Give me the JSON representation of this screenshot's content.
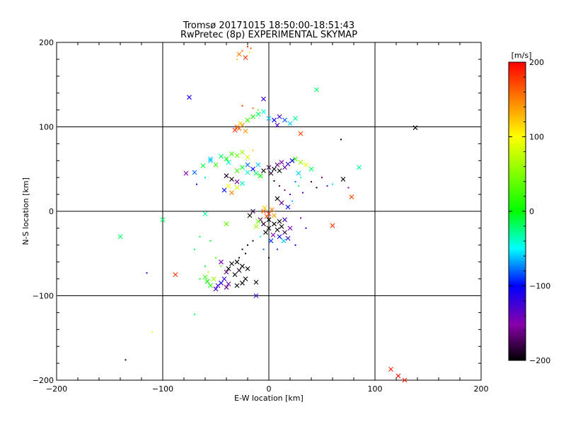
{
  "chart_data": {
    "type": "scatter",
    "title": "Tromsø 20171015 18:50:00-18:51:43",
    "subtitle": "RwPretec (8p) EXPERIMENTAL SKYMAP",
    "xlabel": "E-W location [km]",
    "ylabel": "N-S location [km]",
    "xlim": [
      -200,
      200
    ],
    "ylim": [
      -200,
      200
    ],
    "xticks": [
      "−200",
      "−100",
      "0",
      "100",
      "200"
    ],
    "yticks": [
      "−200",
      "−100",
      "0",
      "100",
      "200"
    ],
    "grid": true,
    "grid_lines": [
      -100,
      0,
      100
    ],
    "colorbar": {
      "label": "[m/s]",
      "range": [
        -200,
        200
      ],
      "ticks": [
        "200",
        "100",
        "0",
        "−100",
        "−200"
      ],
      "position": "right"
    },
    "points": [
      [
        -20,
        195,
        180,
        "d"
      ],
      [
        -17,
        193,
        170,
        "d"
      ],
      [
        -25,
        190,
        160,
        "d"
      ],
      [
        -28,
        186,
        150,
        "x"
      ],
      [
        -22,
        182,
        180,
        "x"
      ],
      [
        -30,
        180,
        120,
        "d"
      ],
      [
        -18,
        188,
        100,
        "d"
      ],
      [
        -75,
        135,
        -110,
        "x"
      ],
      [
        -5,
        133,
        -120,
        "x"
      ],
      [
        45,
        144,
        -20,
        "x"
      ],
      [
        -25,
        125,
        180,
        "d"
      ],
      [
        -15,
        122,
        160,
        "d"
      ],
      [
        -10,
        120,
        40,
        "d"
      ],
      [
        -30,
        100,
        170,
        "x"
      ],
      [
        -28,
        98,
        160,
        "x"
      ],
      [
        -25,
        102,
        150,
        "x"
      ],
      [
        -22,
        95,
        140,
        "x"
      ],
      [
        -27,
        104,
        120,
        "x"
      ],
      [
        -32,
        96,
        180,
        "x"
      ],
      [
        -20,
        108,
        20,
        "x"
      ],
      [
        -15,
        112,
        0,
        "x"
      ],
      [
        -10,
        115,
        -20,
        "x"
      ],
      [
        -5,
        118,
        -40,
        "x"
      ],
      [
        0,
        110,
        -60,
        "x"
      ],
      [
        5,
        108,
        -100,
        "x"
      ],
      [
        10,
        112,
        -120,
        "x"
      ],
      [
        15,
        108,
        -80,
        "x"
      ],
      [
        20,
        104,
        -60,
        "x"
      ],
      [
        25,
        110,
        -30,
        "x"
      ],
      [
        30,
        92,
        170,
        "x"
      ],
      [
        8,
        102,
        -130,
        "x"
      ],
      [
        -45,
        65,
        -20,
        "x"
      ],
      [
        -40,
        62,
        0,
        "x"
      ],
      [
        -35,
        68,
        20,
        "x"
      ],
      [
        -30,
        66,
        40,
        "x"
      ],
      [
        -25,
        70,
        60,
        "x"
      ],
      [
        -20,
        64,
        80,
        "x"
      ],
      [
        -38,
        58,
        -40,
        "x"
      ],
      [
        -50,
        55,
        20,
        "x"
      ],
      [
        -55,
        60,
        -60,
        "x"
      ],
      [
        -62,
        54,
        -10,
        "x"
      ],
      [
        -15,
        72,
        120,
        "d"
      ],
      [
        -20,
        55,
        -80,
        "x"
      ],
      [
        -15,
        50,
        -100,
        "x"
      ],
      [
        -10,
        55,
        -60,
        "x"
      ],
      [
        -5,
        48,
        -200,
        "x"
      ],
      [
        0,
        52,
        -180,
        "x"
      ],
      [
        5,
        50,
        -200,
        "x"
      ],
      [
        10,
        48,
        -200,
        "x"
      ],
      [
        15,
        52,
        -160,
        "x"
      ],
      [
        -12,
        45,
        -20,
        "x"
      ],
      [
        -8,
        42,
        0,
        "x"
      ],
      [
        -20,
        46,
        -40,
        "x"
      ],
      [
        -25,
        52,
        -10,
        "x"
      ],
      [
        -30,
        48,
        20,
        "x"
      ],
      [
        2,
        45,
        -190,
        "x"
      ],
      [
        8,
        55,
        -170,
        "x"
      ],
      [
        12,
        58,
        -150,
        "x"
      ],
      [
        18,
        56,
        -120,
        "x"
      ],
      [
        22,
        60,
        -100,
        "x"
      ],
      [
        25,
        62,
        20,
        "x"
      ],
      [
        30,
        58,
        60,
        "x"
      ],
      [
        35,
        55,
        90,
        "x"
      ],
      [
        40,
        50,
        -20,
        "x"
      ],
      [
        28,
        45,
        -60,
        "x"
      ],
      [
        -40,
        42,
        -190,
        "x"
      ],
      [
        -35,
        38,
        -200,
        "x"
      ],
      [
        -30,
        35,
        -150,
        "x"
      ],
      [
        -38,
        30,
        100,
        "x"
      ],
      [
        -42,
        25,
        -100,
        "x"
      ],
      [
        -35,
        22,
        150,
        "x"
      ],
      [
        -30,
        28,
        80,
        "x"
      ],
      [
        -25,
        33,
        -40,
        "x"
      ],
      [
        -78,
        45,
        -150,
        "x"
      ],
      [
        -70,
        46,
        -80,
        "x"
      ],
      [
        -60,
        40,
        -30,
        "d"
      ],
      [
        -68,
        32,
        -120,
        "d"
      ],
      [
        -55,
        62,
        -60,
        "x"
      ],
      [
        5,
        36,
        -200,
        "d"
      ],
      [
        10,
        30,
        -180,
        "d"
      ],
      [
        15,
        25,
        -160,
        "d"
      ],
      [
        20,
        20,
        -120,
        "d"
      ],
      [
        8,
        15,
        -200,
        "x"
      ],
      [
        12,
        10,
        -160,
        "x"
      ],
      [
        18,
        5,
        -100,
        "x"
      ],
      [
        22,
        12,
        -60,
        "d"
      ],
      [
        28,
        30,
        -20,
        "d"
      ],
      [
        32,
        22,
        -140,
        "d"
      ],
      [
        40,
        35,
        -180,
        "d"
      ],
      [
        45,
        28,
        -200,
        "d"
      ],
      [
        50,
        40,
        -170,
        "d"
      ],
      [
        55,
        30,
        -120,
        "d"
      ],
      [
        30,
        40,
        -40,
        "d"
      ],
      [
        25,
        35,
        -80,
        "d"
      ],
      [
        70,
        38,
        -200,
        "x"
      ],
      [
        78,
        17,
        170,
        "x"
      ],
      [
        85,
        52,
        -30,
        "x"
      ],
      [
        68,
        85,
        -200,
        "d"
      ],
      [
        60,
        32,
        -40,
        "d"
      ],
      [
        75,
        28,
        -150,
        "d"
      ],
      [
        138,
        99,
        -200,
        "x"
      ],
      [
        -5,
        0,
        160,
        "x"
      ],
      [
        0,
        -3,
        180,
        "x"
      ],
      [
        3,
        2,
        150,
        "x"
      ],
      [
        -2,
        -6,
        170,
        "x"
      ],
      [
        5,
        -5,
        140,
        "x"
      ],
      [
        -4,
        4,
        120,
        "x"
      ],
      [
        0,
        -10,
        -200,
        "x"
      ],
      [
        5,
        -15,
        -200,
        "x"
      ],
      [
        10,
        -12,
        -200,
        "x"
      ],
      [
        -5,
        -15,
        -190,
        "x"
      ],
      [
        0,
        -20,
        -200,
        "x"
      ],
      [
        8,
        -22,
        -200,
        "x"
      ],
      [
        12,
        -18,
        -200,
        "x"
      ],
      [
        15,
        -25,
        -180,
        "x"
      ],
      [
        -3,
        -25,
        -200,
        "x"
      ],
      [
        4,
        -28,
        -150,
        "x"
      ],
      [
        10,
        -30,
        -100,
        "x"
      ],
      [
        18,
        -32,
        -120,
        "x"
      ],
      [
        20,
        -20,
        -140,
        "x"
      ],
      [
        15,
        -10,
        -130,
        "x"
      ],
      [
        -8,
        -10,
        -170,
        "x"
      ],
      [
        2,
        -35,
        -90,
        "x"
      ],
      [
        14,
        -35,
        -60,
        "x"
      ],
      [
        -18,
        -5,
        -200,
        "x"
      ],
      [
        -15,
        0,
        -180,
        "x"
      ],
      [
        -10,
        -12,
        40,
        "x"
      ],
      [
        -12,
        -18,
        60,
        "x"
      ],
      [
        -15,
        -35,
        -190,
        "d"
      ],
      [
        -20,
        -40,
        -200,
        "d"
      ],
      [
        -25,
        -45,
        -200,
        "d"
      ],
      [
        -22,
        -50,
        -200,
        "d"
      ],
      [
        -28,
        -55,
        -200,
        "d"
      ],
      [
        -30,
        -60,
        -200,
        "x"
      ],
      [
        -35,
        -62,
        -200,
        "x"
      ],
      [
        -25,
        -65,
        -200,
        "x"
      ],
      [
        -28,
        -70,
        -190,
        "x"
      ],
      [
        -38,
        -68,
        -200,
        "x"
      ],
      [
        -40,
        -72,
        -170,
        "x"
      ],
      [
        -32,
        -75,
        -200,
        "x"
      ],
      [
        -20,
        -68,
        -200,
        "x"
      ],
      [
        -45,
        -60,
        -150,
        "x"
      ],
      [
        -42,
        -80,
        -120,
        "x"
      ],
      [
        -45,
        -85,
        -110,
        "x"
      ],
      [
        -48,
        -88,
        -130,
        "x"
      ],
      [
        -40,
        -90,
        -160,
        "x"
      ],
      [
        -38,
        -86,
        -140,
        "x"
      ],
      [
        -50,
        -92,
        -120,
        "x"
      ],
      [
        -55,
        -88,
        10,
        "x"
      ],
      [
        -58,
        -83,
        0,
        "x"
      ],
      [
        -60,
        -78,
        20,
        "x"
      ],
      [
        -52,
        -80,
        60,
        "x"
      ],
      [
        -57,
        -72,
        80,
        "d"
      ],
      [
        -45,
        -65,
        40,
        "d"
      ],
      [
        -60,
        -65,
        -10,
        "d"
      ],
      [
        -50,
        -55,
        30,
        "d"
      ],
      [
        -65,
        -80,
        -10,
        "d"
      ],
      [
        -25,
        -85,
        -200,
        "x"
      ],
      [
        -30,
        -88,
        -200,
        "x"
      ],
      [
        -22,
        -80,
        -200,
        "x"
      ],
      [
        -12,
        -84,
        -200,
        "x"
      ],
      [
        -12,
        -100,
        -130,
        "x"
      ],
      [
        -60,
        -3,
        -30,
        "x"
      ],
      [
        -40,
        -15,
        40,
        "x"
      ],
      [
        -55,
        -35,
        -10,
        "d"
      ],
      [
        -70,
        -45,
        -20,
        "d"
      ],
      [
        -65,
        -30,
        -20,
        "d"
      ],
      [
        -140,
        -30,
        -20,
        "x"
      ],
      [
        -100,
        -10,
        -20,
        "x"
      ],
      [
        -88,
        -75,
        180,
        "x"
      ],
      [
        -115,
        -73,
        -120,
        "d"
      ],
      [
        -110,
        -143,
        100,
        "d"
      ],
      [
        -70,
        -122,
        -20,
        "d"
      ],
      [
        -135,
        -176,
        -200,
        "d"
      ],
      [
        60,
        -17,
        180,
        "x"
      ],
      [
        30,
        -8,
        -150,
        "d"
      ],
      [
        35,
        -20,
        -120,
        "d"
      ],
      [
        25,
        -40,
        -100,
        "d"
      ],
      [
        115,
        -187,
        190,
        "x"
      ],
      [
        122,
        -195,
        200,
        "x"
      ],
      [
        128,
        -200,
        190,
        "x"
      ],
      [
        0,
        -55,
        -200,
        "d"
      ],
      [
        8,
        -45,
        -150,
        "d"
      ],
      [
        -5,
        -45,
        -80,
        "d"
      ],
      [
        -8,
        -30,
        -40,
        "d"
      ]
    ]
  }
}
